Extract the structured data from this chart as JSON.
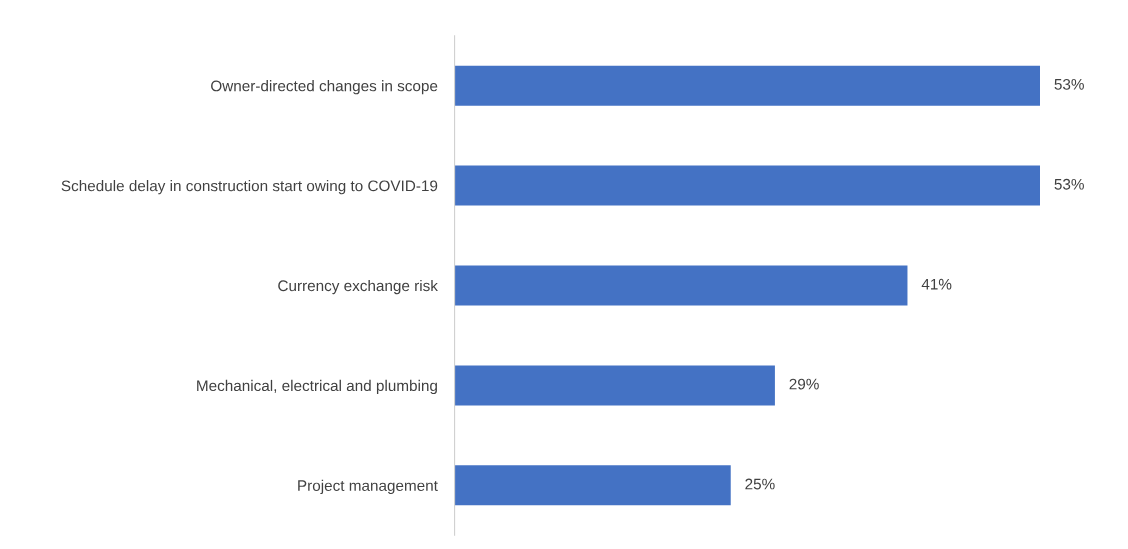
{
  "chart_data": {
    "type": "bar",
    "orientation": "horizontal",
    "categories": [
      "Owner-directed changes in scope",
      "Schedule delay in construction start owing to COVID-19",
      "Currency exchange risk",
      "Mechanical, electrical and plumbing",
      "Project management"
    ],
    "values": [
      53,
      53,
      41,
      29,
      25
    ],
    "color": "#4472c4",
    "value_labels": [
      "53%",
      "53%",
      "41%",
      "29%",
      "25%"
    ],
    "tick_labels": "y",
    "grid": false,
    "legend": false
  }
}
